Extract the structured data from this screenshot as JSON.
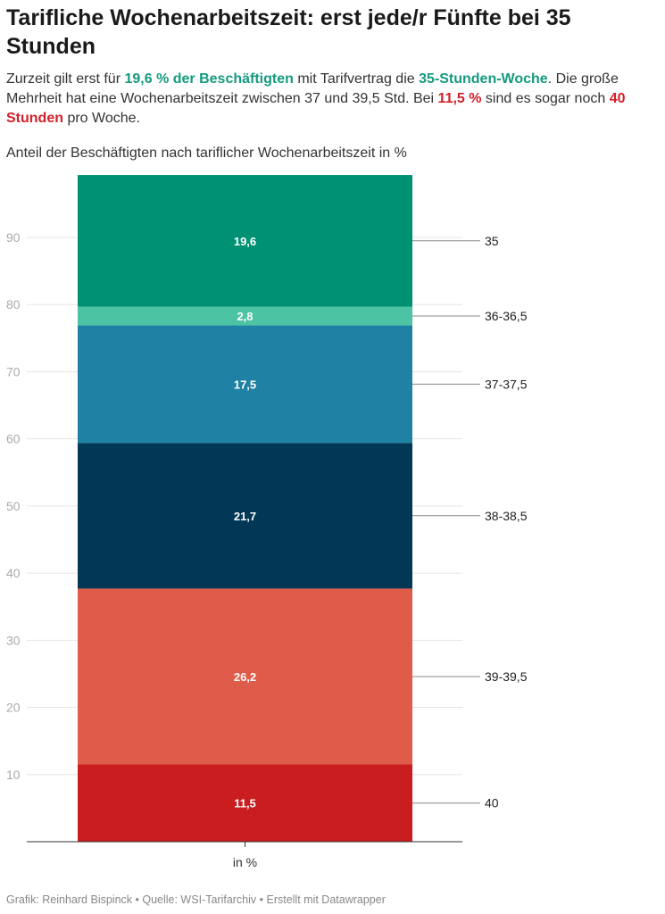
{
  "header": {
    "title": "Tarifliche Wochenarbeitszeit: erst jede/r Fünfte bei 35 Stunden",
    "desc_part1": "Zurzeit gilt erst für ",
    "desc_hl1": "19,6 % der Beschäftigten",
    "desc_part2": " mit Tarifvertrag die ",
    "desc_hl2": "35-Stunden-Woche",
    "desc_part3": ". Die große Mehrheit hat eine Wochenarbeitszeit zwischen 37 und 39,5 Std. Bei ",
    "desc_hl3": "11,5 %",
    "desc_part4": " sind es sogar noch ",
    "desc_hl4": "40 Stunden",
    "desc_part5": " pro Woche.",
    "subtitle": "Anteil der Beschäftigten nach tariflicher Wochenarbeitszeit in %"
  },
  "chart_data": {
    "type": "bar",
    "stacked": true,
    "categories": [
      "in %"
    ],
    "series": [
      {
        "name": "40",
        "value": 11.5,
        "label": "11,5",
        "color": "#c91d1f"
      },
      {
        "name": "39-39,5",
        "value": 26.2,
        "label": "26,2",
        "color": "#e05c4a"
      },
      {
        "name": "38-38,5",
        "value": 21.7,
        "label": "21,7",
        "color": "#023756"
      },
      {
        "name": "37-37,5",
        "value": 17.5,
        "label": "17,5",
        "color": "#1f81a3"
      },
      {
        "name": "36-36,5",
        "value": 2.8,
        "label": "2,8",
        "color": "#4cc3a2"
      },
      {
        "name": "35",
        "value": 19.6,
        "label": "19,6",
        "color": "#009174"
      }
    ],
    "ylim": [
      0,
      100
    ],
    "yticks": [
      10,
      20,
      30,
      40,
      50,
      60,
      70,
      80,
      90
    ],
    "grid": true,
    "legend": "direct labels right"
  },
  "footer": {
    "credit": "Grafik: Reinhard Bispinck • Quelle: WSI-Tarifarchiv • Erstellt mit Datawrapper"
  }
}
